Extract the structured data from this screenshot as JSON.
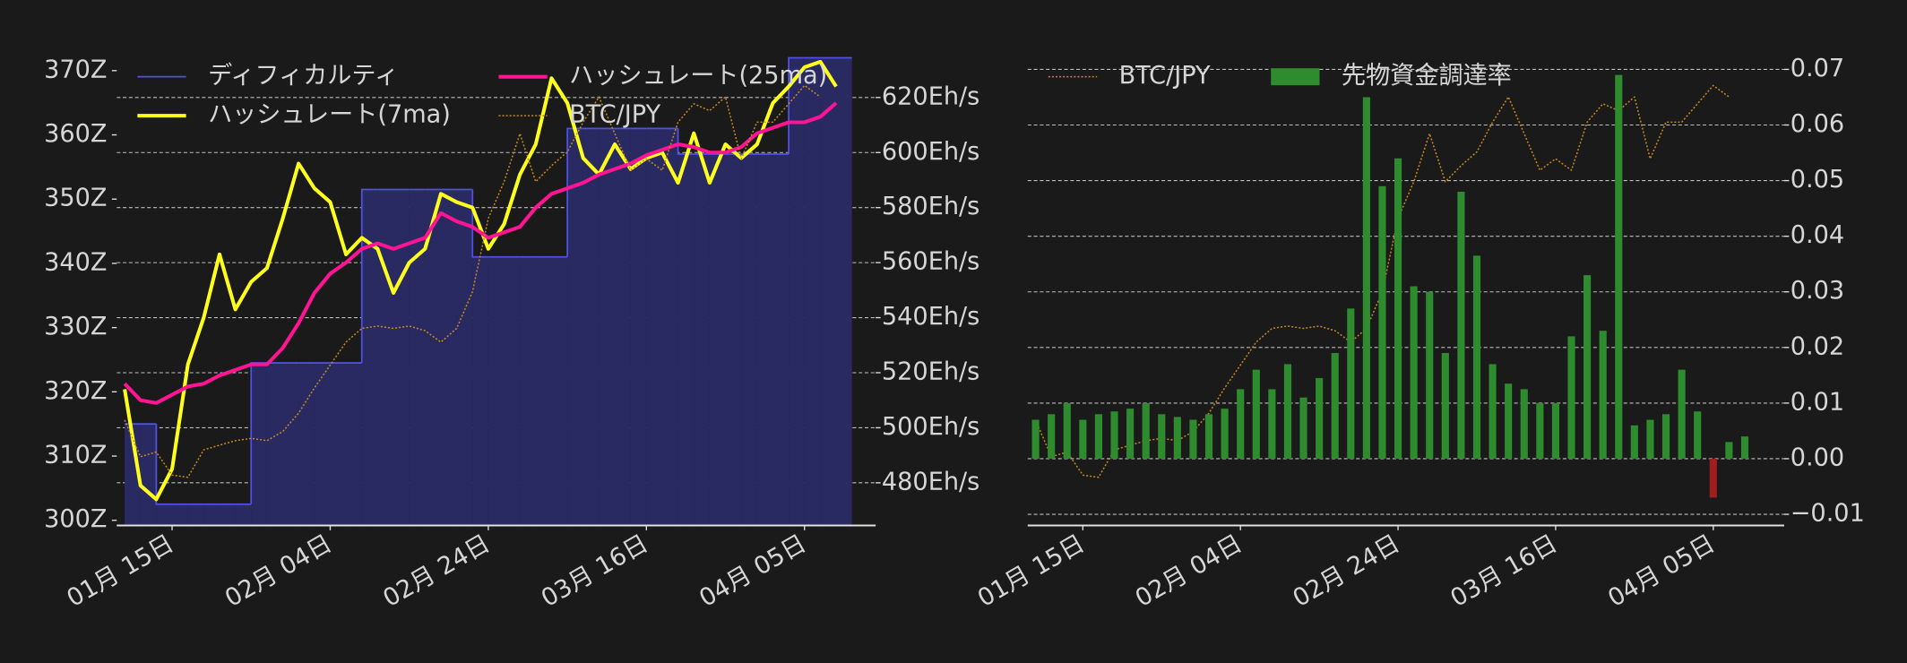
{
  "chart_data": [
    {
      "type": "line",
      "x": [
        "01-09",
        "01-11",
        "01-13",
        "01-15",
        "01-17",
        "01-19",
        "01-21",
        "01-23",
        "01-25",
        "01-27",
        "01-29",
        "01-31",
        "02-02",
        "02-04",
        "02-06",
        "02-08",
        "02-10",
        "02-12",
        "02-14",
        "02-16",
        "02-18",
        "02-20",
        "02-22",
        "02-24",
        "02-26",
        "02-28",
        "03-02",
        "03-04",
        "03-06",
        "03-08",
        "03-10",
        "03-12",
        "03-14",
        "03-16",
        "03-18",
        "03-20",
        "03-22",
        "03-24",
        "03-26",
        "03-28",
        "03-30",
        "04-01",
        "04-03",
        "04-05",
        "04-07",
        "04-09"
      ],
      "xlim": [
        "01-08",
        "04-14"
      ],
      "xticks": [
        {
          "value": "01-15",
          "label": "01月 15日"
        },
        {
          "value": "02-04",
          "label": "02月 04日"
        },
        {
          "value": "02-24",
          "label": "02月 24日"
        },
        {
          "value": "03-16",
          "label": "03月 16日"
        },
        {
          "value": "04-05",
          "label": "04月 05日"
        }
      ],
      "ylim": [
        299.2,
        373.4
      ],
      "yticks": [
        {
          "value": 300,
          "label": "300Z"
        },
        {
          "value": 310,
          "label": "310Z"
        },
        {
          "value": 320,
          "label": "320Z"
        },
        {
          "value": 330,
          "label": "330Z"
        },
        {
          "value": 340,
          "label": "340Z"
        },
        {
          "value": 350,
          "label": "350Z"
        },
        {
          "value": 360,
          "label": "360Z"
        },
        {
          "value": 370,
          "label": "370Z"
        }
      ],
      "y2lim": [
        464.5,
        637.7
      ],
      "y2ticks": [
        {
          "value": 480,
          "label": "480Eh/s"
        },
        {
          "value": 500,
          "label": "500Eh/s"
        },
        {
          "value": 520,
          "label": "520Eh/s"
        },
        {
          "value": 540,
          "label": "540Eh/s"
        },
        {
          "value": 560,
          "label": "560Eh/s"
        },
        {
          "value": 580,
          "label": "580Eh/s"
        },
        {
          "value": 600,
          "label": "600Eh/s"
        },
        {
          "value": 620,
          "label": "620Eh/s"
        }
      ],
      "y3lim": [
        3780000,
        5860000
      ],
      "grid": "y2",
      "legend": "upper left",
      "legend_ncol": 2,
      "series": [
        {
          "name": "ディフィカルティ",
          "type": "step",
          "axis": "y",
          "color": "#5050e6",
          "fill": "#2a2a62",
          "values": [
            315,
            315,
            302.5,
            302.5,
            302.5,
            302.5,
            302.5,
            302.5,
            324.5,
            324.5,
            324.5,
            324.5,
            324.5,
            324.5,
            324.5,
            351.5,
            351.5,
            351.5,
            351.5,
            351.5,
            351.5,
            351.5,
            341,
            341,
            341,
            341,
            341,
            341,
            361,
            361,
            361,
            361,
            361,
            361,
            361,
            357,
            357,
            357,
            357,
            357,
            357,
            357,
            372,
            372,
            372,
            372
          ]
        },
        {
          "name": "ハッシュレート(7ma)",
          "type": "line",
          "axis": "y2",
          "color": "#ffff1e",
          "values": [
            514,
            479,
            474,
            485,
            523,
            540,
            563,
            543,
            553,
            558,
            576,
            596,
            587,
            582,
            563,
            569,
            565,
            549,
            560,
            565,
            585,
            582,
            580,
            565,
            574,
            592,
            603,
            627,
            618,
            598,
            592,
            603,
            594,
            598,
            600,
            589,
            607,
            589,
            603,
            598,
            603,
            618,
            624,
            631,
            633,
            624
          ]
        },
        {
          "name": "ハッシュレート(25ma)",
          "type": "line",
          "axis": "y2",
          "color": "#ff1493",
          "values": [
            516,
            510,
            509,
            512,
            515,
            516,
            519,
            521,
            523,
            523,
            529,
            538,
            549,
            556,
            560,
            565,
            567,
            565,
            567,
            569,
            578,
            575,
            573,
            569,
            571,
            573,
            580,
            585,
            587,
            589,
            592,
            594,
            596,
            599,
            601,
            603,
            602,
            600,
            600,
            602,
            607,
            609,
            611,
            611,
            613,
            618
          ]
        },
        {
          "name": "BTC/JPY",
          "type": "line",
          "axis": "y3",
          "style": "dotted",
          "color": "#c8891e",
          "values": [
            4240000,
            4080000,
            4100000,
            4000000,
            3990000,
            4110000,
            4130000,
            4150000,
            4160000,
            4150000,
            4190000,
            4270000,
            4380000,
            4480000,
            4580000,
            4640000,
            4650000,
            4640000,
            4650000,
            4630000,
            4580000,
            4640000,
            4800000,
            5120000,
            5280000,
            5490000,
            5280000,
            5350000,
            5410000,
            5540000,
            5650000,
            5490000,
            5330000,
            5380000,
            5330000,
            5540000,
            5620000,
            5590000,
            5650000,
            5380000,
            5540000,
            5540000,
            5620000,
            5700000,
            5650000,
            null
          ]
        }
      ]
    },
    {
      "type": "bar",
      "x": [
        "01-09",
        "01-11",
        "01-13",
        "01-15",
        "01-17",
        "01-19",
        "01-21",
        "01-23",
        "01-25",
        "01-27",
        "01-29",
        "01-31",
        "02-02",
        "02-04",
        "02-06",
        "02-08",
        "02-10",
        "02-12",
        "02-14",
        "02-16",
        "02-18",
        "02-20",
        "02-22",
        "02-24",
        "02-26",
        "02-28",
        "03-02",
        "03-04",
        "03-06",
        "03-08",
        "03-10",
        "03-12",
        "03-14",
        "03-16",
        "03-18",
        "03-20",
        "03-22",
        "03-24",
        "03-26",
        "03-28",
        "03-30",
        "04-01",
        "04-03",
        "04-05",
        "04-07",
        "04-09"
      ],
      "xlim": [
        "01-08",
        "04-14"
      ],
      "xticks": [
        {
          "value": "01-15",
          "label": "01月 15日"
        },
        {
          "value": "02-04",
          "label": "02月 04日"
        },
        {
          "value": "02-24",
          "label": "02月 24日"
        },
        {
          "value": "03-16",
          "label": "03月 16日"
        },
        {
          "value": "04-05",
          "label": "04月 05日"
        }
      ],
      "y2lim": [
        -0.012,
        0.0737
      ],
      "y2ticks": [
        {
          "value": -0.01,
          "label": "−0.01"
        },
        {
          "value": 0,
          "label": "0.00"
        },
        0.01,
        0.02,
        0.03,
        0.04,
        0.05,
        0.06,
        0.07
      ],
      "y3lim": [
        3780000,
        5860000
      ],
      "grid": "y2",
      "legend": "upper left",
      "legend_ncol": 2,
      "series": [
        {
          "name": "BTC/JPY",
          "type": "line",
          "axis": "y3",
          "style": "dotted",
          "color": "#c8891e",
          "values": [
            4240000,
            4080000,
            4100000,
            4000000,
            3990000,
            4110000,
            4130000,
            4150000,
            4160000,
            4150000,
            4190000,
            4270000,
            4380000,
            4480000,
            4580000,
            4640000,
            4650000,
            4640000,
            4650000,
            4630000,
            4580000,
            4640000,
            4800000,
            5120000,
            5280000,
            5490000,
            5280000,
            5350000,
            5410000,
            5540000,
            5650000,
            5490000,
            5330000,
            5380000,
            5330000,
            5540000,
            5620000,
            5590000,
            5650000,
            5380000,
            5540000,
            5540000,
            5620000,
            5700000,
            5650000,
            null
          ]
        },
        {
          "name": "先物資金調達率",
          "type": "bar",
          "axis": "y2",
          "color": "#2e8b2e",
          "negative_color": "#a01e1e",
          "values": [
            0.007,
            0.008,
            0.01,
            0.007,
            0.008,
            0.0085,
            0.009,
            0.01,
            0.008,
            0.0075,
            0.007,
            0.008,
            0.009,
            0.0125,
            0.016,
            0.0125,
            0.017,
            0.011,
            0.0145,
            0.019,
            0.027,
            0.065,
            0.049,
            0.054,
            0.031,
            0.03,
            0.019,
            0.048,
            0.0365,
            0.017,
            0.0135,
            0.0125,
            0.01,
            0.01,
            0.022,
            0.033,
            0.023,
            0.069,
            0.006,
            0.007,
            0.008,
            0.016,
            0.0085,
            -0.007,
            0.003,
            0.004
          ]
        }
      ]
    }
  ]
}
